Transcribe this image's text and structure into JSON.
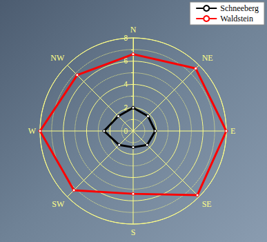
{
  "chart_data": {
    "type": "radar",
    "categories": [
      "N",
      "NE",
      "E",
      "SE",
      "S",
      "SW",
      "W",
      "NW"
    ],
    "series": [
      {
        "name": "Schneeberg",
        "color": "#000000",
        "marker": "circle",
        "values": [
          2.0,
          1.8,
          1.9,
          1.7,
          1.4,
          1.7,
          2.5,
          1.8
        ]
      },
      {
        "name": "Waldstein",
        "color": "#ff0000",
        "marker": "circle",
        "values": [
          6.6,
          7.6,
          8.0,
          7.8,
          5.4,
          7.2,
          8.0,
          6.8
        ]
      }
    ],
    "ylim": [
      0,
      8
    ],
    "yticks": [
      0,
      2,
      4,
      6,
      8
    ],
    "grid": true,
    "legend": "upper right"
  }
}
